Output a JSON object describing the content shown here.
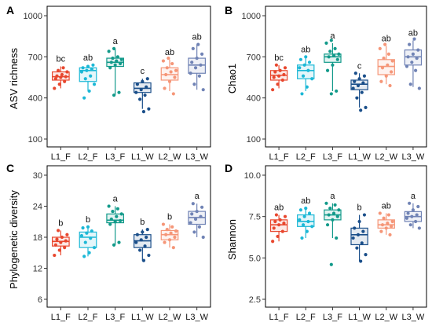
{
  "chart_data": [
    {
      "panel": "A",
      "type": "box",
      "ylabel": "ASV richness",
      "ylim": [
        100,
        1000
      ],
      "yticks": [
        "100",
        "400",
        "700",
        "1000"
      ],
      "ytick_values": [
        100,
        400,
        700,
        1000
      ],
      "categories": [
        "L1_F",
        "L2_F",
        "L3_F",
        "L1_W",
        "L2_W",
        "L3_W"
      ],
      "colors": [
        "#e8472e",
        "#1cb8d6",
        "#129a8a",
        "#1b4f8a",
        "#f59678",
        "#7083b5"
      ],
      "significance": [
        "bc",
        "ab",
        "a",
        "c",
        "ab",
        "ab"
      ],
      "boxes": [
        {
          "min": 470,
          "q1": 530,
          "median": 555,
          "q3": 590,
          "max": 630
        },
        {
          "min": 450,
          "q1": 520,
          "median": 600,
          "q3": 620,
          "max": 640
        },
        {
          "min": 420,
          "q1": 630,
          "median": 660,
          "q3": 690,
          "max": 760
        },
        {
          "min": 320,
          "q1": 440,
          "median": 470,
          "q3": 510,
          "max": 540
        },
        {
          "min": 450,
          "q1": 530,
          "median": 570,
          "q3": 620,
          "max": 680
        },
        {
          "min": 460,
          "q1": 580,
          "median": 640,
          "q3": 690,
          "max": 790
        }
      ],
      "points": [
        [
          470,
          500,
          520,
          540,
          550,
          555,
          560,
          570,
          590,
          600,
          620
        ],
        [
          400,
          450,
          500,
          540,
          560,
          590,
          600,
          610,
          620,
          630,
          640
        ],
        [
          420,
          440,
          620,
          640,
          650,
          660,
          670,
          680,
          690,
          700,
          740,
          760
        ],
        [
          300,
          320,
          390,
          420,
          440,
          460,
          480,
          500,
          520,
          540
        ],
        [
          430,
          470,
          520,
          550,
          570,
          590,
          600,
          620,
          650,
          670,
          690
        ],
        [
          460,
          500,
          560,
          580,
          620,
          640,
          660,
          690,
          720,
          760,
          790
        ]
      ]
    },
    {
      "panel": "B",
      "type": "box",
      "ylabel": "Chao1",
      "ylim": [
        100,
        1000
      ],
      "yticks": [
        "100",
        "400",
        "700",
        "1000"
      ],
      "ytick_values": [
        100,
        400,
        700,
        1000
      ],
      "categories": [
        "L1_F",
        "L2_F",
        "L3_F",
        "L1_W",
        "L2_W",
        "L3_W"
      ],
      "colors": [
        "#e8472e",
        "#1cb8d6",
        "#129a8a",
        "#1b4f8a",
        "#f59678",
        "#7083b5"
      ],
      "significance": [
        "bc",
        "ab",
        "a",
        "c",
        "ab",
        "ab"
      ],
      "boxes": [
        {
          "min": 470,
          "q1": 530,
          "median": 565,
          "q3": 600,
          "max": 640
        },
        {
          "min": 450,
          "q1": 540,
          "median": 600,
          "q3": 640,
          "max": 700
        },
        {
          "min": 450,
          "q1": 660,
          "median": 700,
          "q3": 720,
          "max": 800
        },
        {
          "min": 330,
          "q1": 460,
          "median": 500,
          "q3": 530,
          "max": 580
        },
        {
          "min": 500,
          "q1": 570,
          "median": 630,
          "q3": 680,
          "max": 780
        },
        {
          "min": 480,
          "q1": 640,
          "median": 700,
          "q3": 750,
          "max": 820
        }
      ],
      "points": [
        [
          460,
          500,
          530,
          550,
          560,
          570,
          590,
          600,
          620,
          640
        ],
        [
          430,
          480,
          540,
          560,
          600,
          620,
          640,
          660,
          680,
          700
        ],
        [
          430,
          450,
          600,
          640,
          680,
          700,
          710,
          720,
          740,
          760,
          800,
          820
        ],
        [
          310,
          330,
          400,
          440,
          470,
          490,
          510,
          520,
          540,
          560,
          580
        ],
        [
          490,
          520,
          560,
          590,
          620,
          640,
          670,
          690,
          720,
          760,
          790
        ],
        [
          470,
          500,
          600,
          630,
          660,
          690,
          700,
          720,
          750,
          790,
          830
        ]
      ]
    },
    {
      "panel": "C",
      "type": "box",
      "ylabel": "Phylogenetic diversity",
      "ylim": [
        6,
        30
      ],
      "yticks": [
        "6",
        "12",
        "18",
        "24",
        "30"
      ],
      "ytick_values": [
        6,
        12,
        18,
        24,
        30
      ],
      "categories": [
        "L1_F",
        "L2_F",
        "L3_F",
        "L1_W",
        "L2_W",
        "L3_W"
      ],
      "colors": [
        "#e8472e",
        "#1cb8d6",
        "#129a8a",
        "#1b4f8a",
        "#f59678",
        "#7083b5"
      ],
      "significance": [
        "b",
        "b",
        "a",
        "b",
        "b",
        "a"
      ],
      "boxes": [
        {
          "min": 14.5,
          "q1": 16.3,
          "median": 17.2,
          "q3": 18.0,
          "max": 19.3
        },
        {
          "min": 14.3,
          "q1": 16.0,
          "median": 18.0,
          "q3": 19.0,
          "max": 20.0
        },
        {
          "min": 16.5,
          "q1": 20.8,
          "median": 21.3,
          "q3": 22.5,
          "max": 24.0
        },
        {
          "min": 13.5,
          "q1": 16.0,
          "median": 17.3,
          "q3": 18.5,
          "max": 19.5
        },
        {
          "min": 16.0,
          "q1": 17.5,
          "median": 18.5,
          "q3": 19.3,
          "max": 20.5
        },
        {
          "min": 18.0,
          "q1": 20.5,
          "median": 21.8,
          "q3": 23.0,
          "max": 24.5
        }
      ],
      "points": [
        [
          14.5,
          15.5,
          16.0,
          16.5,
          17.0,
          17.3,
          17.6,
          18.0,
          18.5,
          19.3
        ],
        [
          14.3,
          15.0,
          16.0,
          17.0,
          17.8,
          18.3,
          18.8,
          19.2,
          19.8,
          20.0
        ],
        [
          16.5,
          17.0,
          20.5,
          21.0,
          21.2,
          21.5,
          22.0,
          22.5,
          23.0,
          23.5,
          24.0
        ],
        [
          13.5,
          14.5,
          15.5,
          16.3,
          17.0,
          17.5,
          18.0,
          18.5,
          19.0,
          19.5
        ],
        [
          16.0,
          17.0,
          17.5,
          18.0,
          18.5,
          18.8,
          19.2,
          19.5,
          20.0,
          20.5
        ],
        [
          18.0,
          19.0,
          20.0,
          20.8,
          21.5,
          22.0,
          22.5,
          23.0,
          23.8,
          24.5
        ]
      ]
    },
    {
      "panel": "D",
      "type": "box",
      "ylabel": "Shannon",
      "ylim": [
        2.5,
        10.0
      ],
      "yticks": [
        "2.5",
        "5.0",
        "7.5",
        "10.0"
      ],
      "ytick_values": [
        2.5,
        5.0,
        7.5,
        10.0
      ],
      "categories": [
        "L1_F",
        "L2_F",
        "L3_F",
        "L1_W",
        "L2_W",
        "L3_W"
      ],
      "colors": [
        "#e8472e",
        "#1cb8d6",
        "#129a8a",
        "#1b4f8a",
        "#f59678",
        "#7083b5"
      ],
      "significance": [
        "ab",
        "ab",
        "a",
        "b",
        "ab",
        "a"
      ],
      "boxes": [
        {
          "min": 6.0,
          "q1": 6.6,
          "median": 7.0,
          "q3": 7.3,
          "max": 7.6
        },
        {
          "min": 6.2,
          "q1": 6.9,
          "median": 7.2,
          "q3": 7.6,
          "max": 8.0
        },
        {
          "min": 6.2,
          "q1": 7.3,
          "median": 7.6,
          "q3": 7.9,
          "max": 8.3
        },
        {
          "min": 4.8,
          "q1": 5.8,
          "median": 6.4,
          "q3": 6.8,
          "max": 7.6
        },
        {
          "min": 6.4,
          "q1": 6.8,
          "median": 7.0,
          "q3": 7.3,
          "max": 7.7
        },
        {
          "min": 6.8,
          "q1": 7.2,
          "median": 7.5,
          "q3": 7.8,
          "max": 8.3
        }
      ],
      "points": [
        [
          6.0,
          6.3,
          6.6,
          6.8,
          7.0,
          7.1,
          7.2,
          7.3,
          7.5,
          7.6
        ],
        [
          6.2,
          6.6,
          6.9,
          7.0,
          7.2,
          7.3,
          7.5,
          7.7,
          7.9,
          8.0
        ],
        [
          4.6,
          6.2,
          7.0,
          7.3,
          7.5,
          7.6,
          7.7,
          7.9,
          8.0,
          8.2,
          8.3
        ],
        [
          4.8,
          5.2,
          5.6,
          5.9,
          6.2,
          6.4,
          6.6,
          6.8,
          7.2,
          7.6
        ],
        [
          6.4,
          6.6,
          6.8,
          6.9,
          7.0,
          7.1,
          7.2,
          7.4,
          7.6,
          7.7
        ],
        [
          6.8,
          7.0,
          7.2,
          7.4,
          7.5,
          7.6,
          7.7,
          7.9,
          8.1,
          8.3
        ]
      ]
    }
  ]
}
